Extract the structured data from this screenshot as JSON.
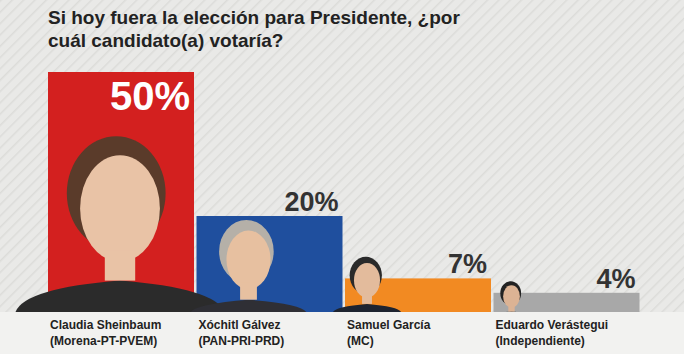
{
  "chart_data": {
    "type": "bar",
    "title": "Si hoy fuera la elección para Presidente, ¿por cuál candidato(a) votaría?",
    "categories": [
      "Claudia Sheinbaum",
      "Xóchitl Gálvez",
      "Samuel García",
      "Eduardo Verástegui"
    ],
    "parties": [
      "(Morena-PT-PVEM)",
      "(PAN-PRI-PRD)",
      "(MC)",
      "(Independiente)"
    ],
    "values": [
      50,
      20,
      7,
      4
    ],
    "value_labels": [
      "50%",
      "20%",
      "7%",
      "4%"
    ],
    "colors": [
      "#d3201f",
      "#1f4f9e",
      "#f28a22",
      "#a8a8a8"
    ],
    "ylim": [
      0,
      50
    ],
    "grid": false,
    "data_labels": true,
    "tick_labels": false
  }
}
